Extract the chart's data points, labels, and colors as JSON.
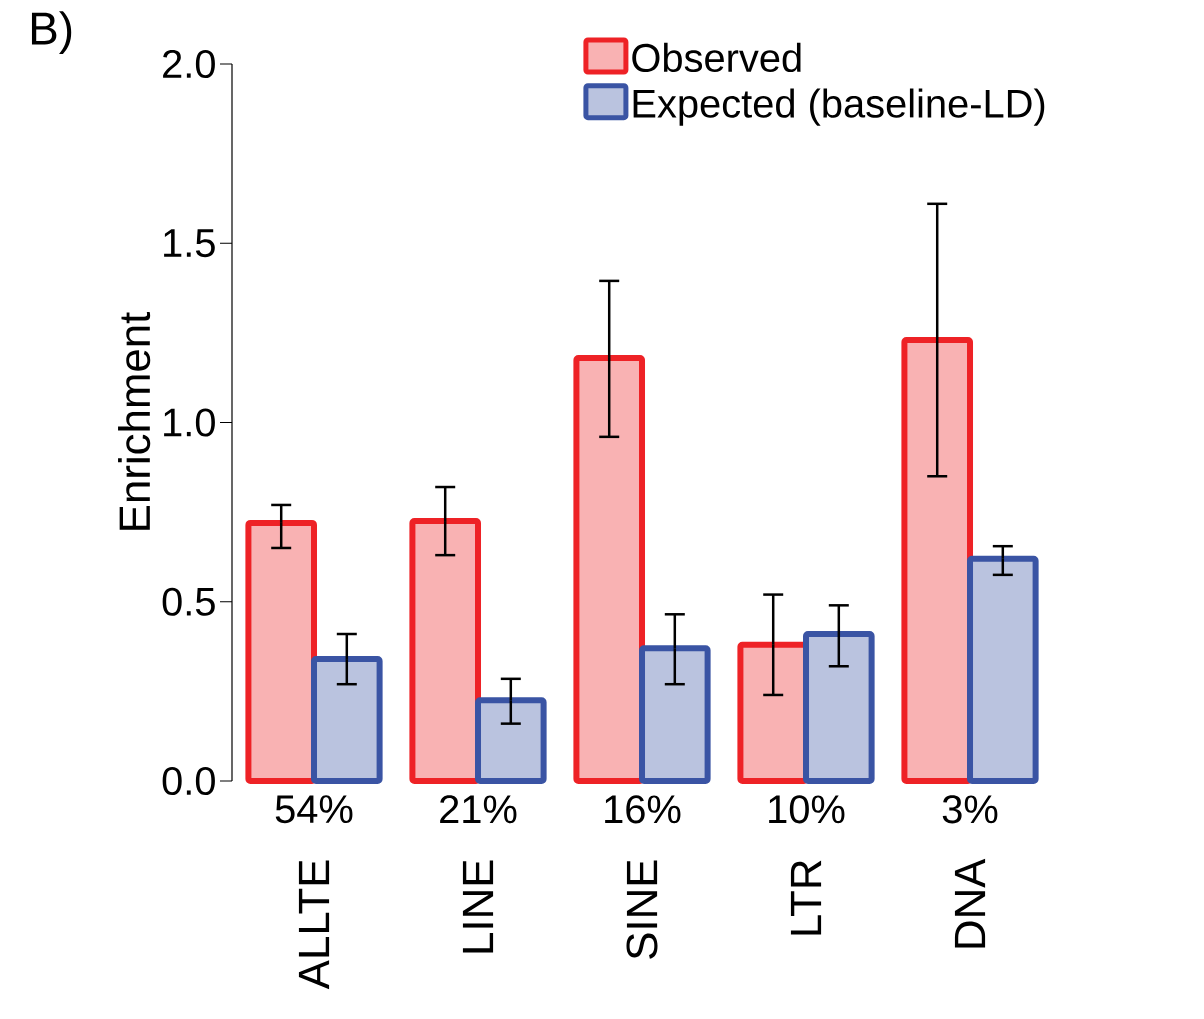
{
  "chart_data": {
    "type": "bar",
    "ylabel": "Enrichment",
    "categories": [
      "ALLTE",
      "LINE",
      "SINE",
      "LTR",
      "DNA"
    ],
    "series": [
      {
        "name": "Observed",
        "color": "#ee2226",
        "values": [
          0.72,
          0.725,
          1.18,
          0.38,
          1.23
        ],
        "errors": [
          [
            0.65,
            0.77
          ],
          [
            0.63,
            0.82
          ],
          [
            0.96,
            1.395
          ],
          [
            0.24,
            0.52
          ],
          [
            0.85,
            1.61
          ]
        ]
      },
      {
        "name": "Expected (baseline-LD)",
        "color": "#3a54a4",
        "values": [
          0.34,
          0.225,
          0.37,
          0.41,
          0.62
        ],
        "errors": [
          [
            0.27,
            0.41
          ],
          [
            0.16,
            0.285
          ],
          [
            0.27,
            0.465
          ],
          [
            0.32,
            0.49
          ],
          [
            0.575,
            0.655
          ]
        ]
      }
    ],
    "ylim": [
      0,
      2
    ],
    "yticks": [
      {
        "value": 0,
        "label": "0.0"
      },
      {
        "value": 0.5,
        "label": "0.5"
      },
      {
        "value": 1,
        "label": "1.0"
      },
      {
        "value": 1.5,
        "label": "1.5"
      },
      {
        "value": 2,
        "label": "2.0"
      }
    ],
    "legend": "top right",
    "annotations": [
      "B)",
      "54%",
      "21%",
      "16%",
      "10%",
      "3%"
    ]
  }
}
